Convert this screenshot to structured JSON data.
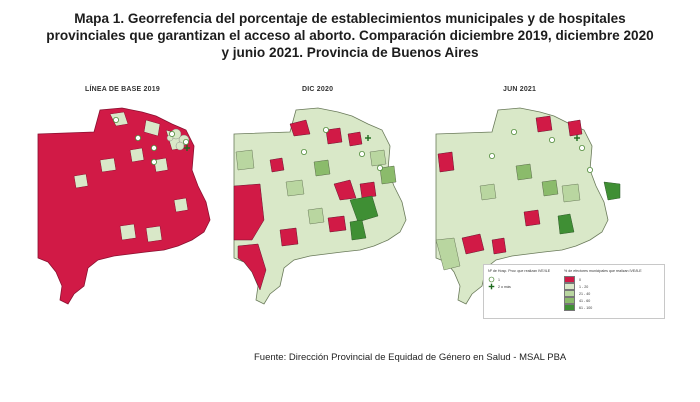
{
  "title": {
    "line1": "Mapa 1. Georrefencia del porcentaje de establecimientos municipales y de hospitales",
    "line2": "provinciales que garantizan el acceso al aborto. Comparación diciembre 2019, diciembre 2020",
    "line3": "y junio 2021. Provincia de Buenos Aires"
  },
  "panels": [
    {
      "label": "LÍNEA DE BASE 2019"
    },
    {
      "label": "DIC 2020"
    },
    {
      "label": "JUN 2021"
    }
  ],
  "legend": {
    "hospitals_title": "Nº de Hosp. Prov. que realizan IVE/ILE",
    "hospital_items": [
      {
        "label": "1",
        "icon": "circle-icon"
      },
      {
        "label": "2 o más",
        "icon": "plus-icon"
      }
    ],
    "municipal_title": "% de efectores municipales que realizan IVE/ILE",
    "categories": [
      {
        "label": "0",
        "color": "#d11a46"
      },
      {
        "label": "1 - 20",
        "color": "#d9e8c8"
      },
      {
        "label": "21 - 40",
        "color": "#b9d6a0"
      },
      {
        "label": "41 - 60",
        "color": "#8bbb6b"
      },
      {
        "label": "61 - 100",
        "color": "#3f8f34"
      }
    ]
  },
  "colors": {
    "red": "#d11a46",
    "lightest_green": "#d9e8c8",
    "light_green": "#b9d6a0",
    "mid_green": "#8bbb6b",
    "dark_green": "#3f8f34",
    "background_gray": "#e6e6e6"
  },
  "source": "Fuente: Dirección Provincial de Equidad de Género en Salud - MSAL PBA"
}
